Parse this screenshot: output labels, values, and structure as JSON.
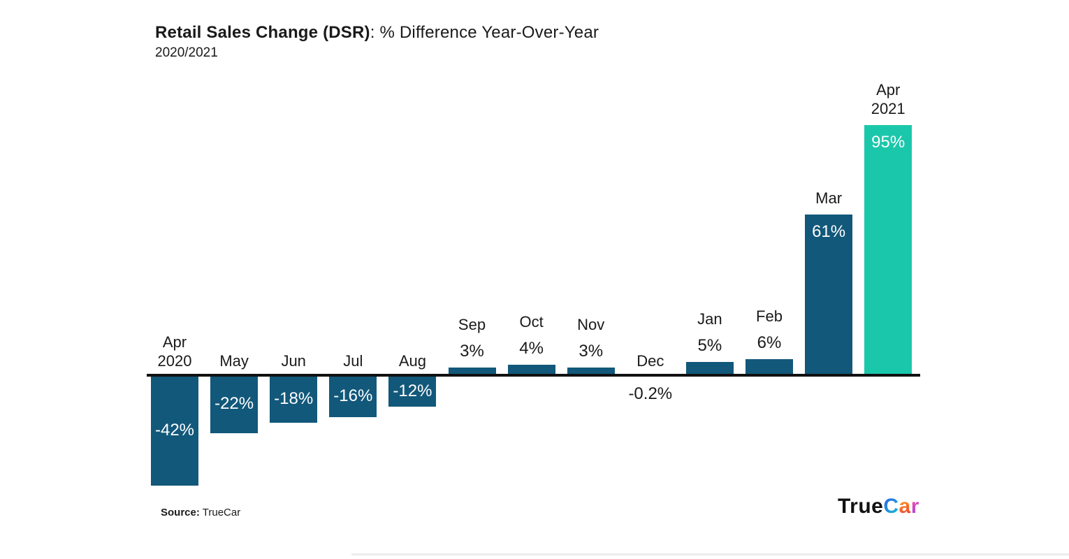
{
  "header": {
    "title_bold": "Retail Sales Change (DSR)",
    "title_regular": ": % Difference Year-Over-Year",
    "subtitle": "2020/2021"
  },
  "chart_data": {
    "type": "bar",
    "title": "Retail Sales Change (DSR): % Difference Year-Over-Year",
    "subtitle": "2020/2021",
    "unit": "%",
    "grid": false,
    "legend": false,
    "ylim": [
      -50,
      100
    ],
    "categories": [
      "Apr 2020",
      "May",
      "Jun",
      "Jul",
      "Aug",
      "Sep",
      "Oct",
      "Nov",
      "Dec",
      "Jan",
      "Feb",
      "Mar",
      "Apr 2021"
    ],
    "values": [
      -42,
      -22,
      -18,
      -16,
      -12,
      3,
      4,
      3,
      -0.2,
      5,
      6,
      61,
      95
    ],
    "colors": {
      "dark": "#12587A",
      "accent": "#1BC7AB"
    },
    "bars": [
      {
        "name_lines": [
          "Apr",
          "2020"
        ],
        "value": -42,
        "value_label": "-42%",
        "color": "dark",
        "value_placement": "inside-middle",
        "name_placement": "above-axis"
      },
      {
        "name_lines": [
          "May"
        ],
        "value": -22,
        "value_label": "-22%",
        "color": "dark",
        "value_placement": "inside-middle",
        "name_placement": "above-axis"
      },
      {
        "name_lines": [
          "Jun"
        ],
        "value": -18,
        "value_label": "-18%",
        "color": "dark",
        "value_placement": "inside-middle",
        "name_placement": "above-axis"
      },
      {
        "name_lines": [
          "Jul"
        ],
        "value": -16,
        "value_label": "-16%",
        "color": "dark",
        "value_placement": "inside-middle",
        "name_placement": "above-axis"
      },
      {
        "name_lines": [
          "Aug"
        ],
        "value": -12,
        "value_label": "-12%",
        "color": "dark",
        "value_placement": "inside-middle",
        "name_placement": "above-axis"
      },
      {
        "name_lines": [
          "Sep"
        ],
        "value": 3,
        "value_label": "3%",
        "color": "dark",
        "value_placement": "above-bar",
        "name_placement": "above-bar"
      },
      {
        "name_lines": [
          "Oct"
        ],
        "value": 4,
        "value_label": "4%",
        "color": "dark",
        "value_placement": "above-bar",
        "name_placement": "above-bar"
      },
      {
        "name_lines": [
          "Nov"
        ],
        "value": 3,
        "value_label": "3%",
        "color": "dark",
        "value_placement": "above-bar",
        "name_placement": "above-bar"
      },
      {
        "name_lines": [
          "Dec"
        ],
        "value": -0.2,
        "value_label": "-0.2%",
        "color": "dark",
        "value_placement": "below-axis",
        "name_placement": "above-axis"
      },
      {
        "name_lines": [
          "Jan"
        ],
        "value": 5,
        "value_label": "5%",
        "color": "dark",
        "value_placement": "above-bar",
        "name_placement": "above-bar"
      },
      {
        "name_lines": [
          "Feb"
        ],
        "value": 6,
        "value_label": "6%",
        "color": "dark",
        "value_placement": "above-bar",
        "name_placement": "above-bar"
      },
      {
        "name_lines": [
          "Mar"
        ],
        "value": 61,
        "value_label": "61%",
        "color": "dark",
        "value_placement": "inside-top",
        "name_placement": "above-bar"
      },
      {
        "name_lines": [
          "Apr",
          "2021"
        ],
        "value": 95,
        "value_label": "95%",
        "color": "accent",
        "value_placement": "inside-top",
        "name_placement": "above-bar"
      }
    ]
  },
  "footer": {
    "source_bold": "Source:",
    "source_text": " TrueCar"
  },
  "logo": {
    "black_part": "True",
    "letters": [
      "C",
      "a",
      "r"
    ]
  }
}
